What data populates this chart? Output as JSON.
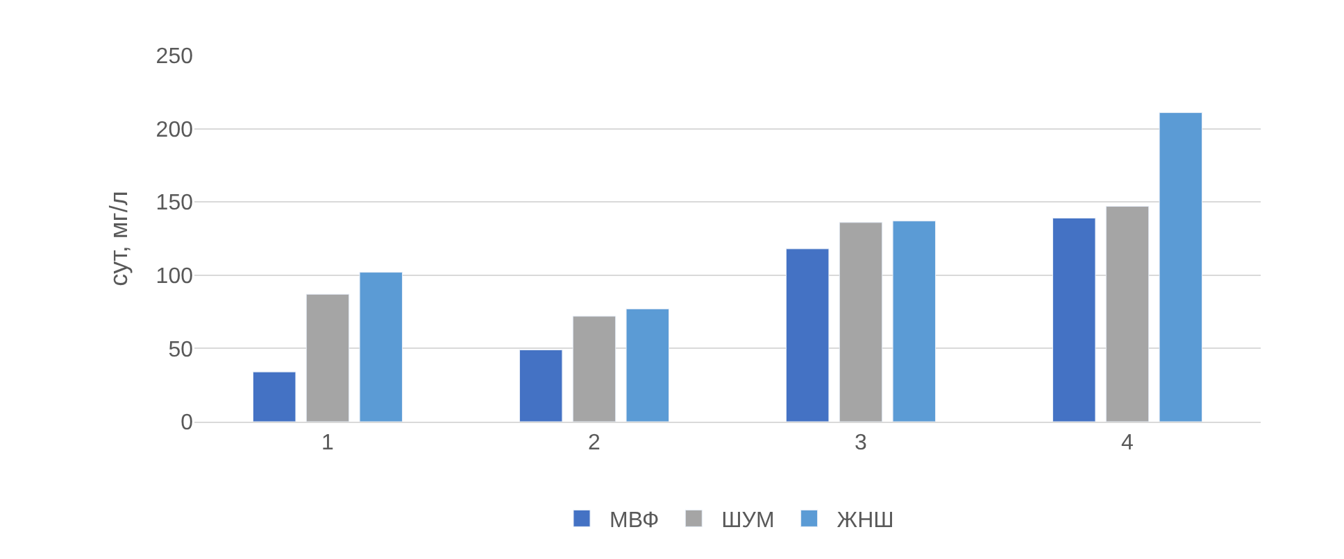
{
  "chart_data": {
    "type": "bar",
    "ylabel": "сут, мг/л",
    "categories": [
      "1",
      "2",
      "3",
      "4"
    ],
    "series": [
      {
        "name": "МВФ",
        "color": "#4472c4",
        "values": [
          34,
          49,
          118,
          139
        ]
      },
      {
        "name": "ШУМ",
        "color": "#a5a5a5",
        "values": [
          87,
          72,
          136,
          147
        ]
      },
      {
        "name": "ЖНШ",
        "color": "#5b9bd5",
        "values": [
          102,
          77,
          137,
          211
        ]
      }
    ],
    "ylim": [
      0,
      250
    ],
    "yticks": [
      0,
      50,
      100,
      150,
      200,
      250
    ],
    "grid": "y",
    "legend": "bottom"
  }
}
